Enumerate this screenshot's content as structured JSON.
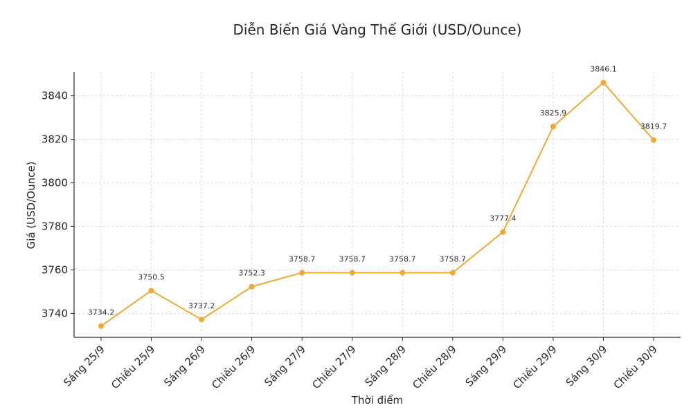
{
  "chart_data": {
    "type": "line",
    "title": "Diễn Biến Giá Vàng Thế Giới (USD/Ounce)",
    "xlabel": "Thời điểm",
    "ylabel": "Giá (USD/Ounce)",
    "categories": [
      "Sáng 25/9",
      "Chiều 25/9",
      "Sáng 26/9",
      "Chiều 26/9",
      "Sáng 27/9",
      "Chiều 27/9",
      "Sáng 28/9",
      "Chiều 28/9",
      "Sáng 29/9",
      "Chiều 29/9",
      "Sáng 30/9",
      "Chiều 30/9"
    ],
    "series": [
      {
        "values": [
          3734.2,
          3750.5,
          3737.2,
          3752.3,
          3758.7,
          3758.7,
          3758.7,
          3758.7,
          3777.4,
          3825.9,
          3846.1,
          3819.7
        ],
        "labels": [
          "3734.2",
          "3750.5",
          "3737.2",
          "3752.3",
          "3758.7",
          "3758.7",
          "3758.7",
          "3758.7",
          "3777.4",
          "3825.9",
          "3846.1",
          "3819.7"
        ],
        "color": "#f0a830"
      }
    ],
    "ylim": [
      3729,
      3851
    ],
    "yticks": [
      3740,
      3760,
      3780,
      3800,
      3820,
      3840
    ],
    "ytick_labels": [
      "3740",
      "3760",
      "3780",
      "3800",
      "3820",
      "3840"
    ],
    "grid": true,
    "legend": "none"
  }
}
